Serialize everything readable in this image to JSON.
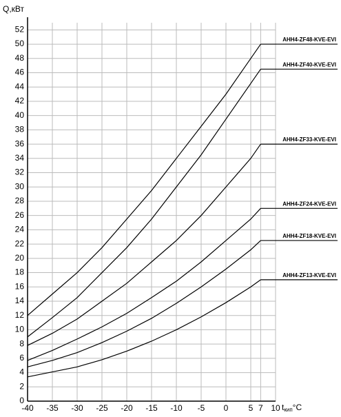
{
  "chart_data": {
    "type": "line",
    "y_label": "Q,кВт",
    "x_label": {
      "main": "t",
      "sub": "кип",
      "unit": "°C"
    },
    "x": [
      -40,
      -35,
      -30,
      -25,
      -20,
      -15,
      -10,
      -5,
      0,
      5,
      7
    ],
    "series": [
      {
        "name": "AHH4-ZF48-KVE-EVI",
        "color": "#000000",
        "values": [
          12,
          15,
          18,
          21.5,
          25.5,
          29.5,
          34,
          38.5,
          43,
          48,
          50
        ]
      },
      {
        "name": "AHH4-ZF40-KVE-EVI",
        "color": "#000000",
        "values": [
          9,
          11.7,
          14.5,
          18,
          21.5,
          25.5,
          30,
          34.5,
          39.5,
          44.5,
          46.5
        ]
      },
      {
        "name": "AHH4-ZF33-KVE-EVI",
        "color": "#000000",
        "values": [
          7.8,
          9.5,
          11.5,
          14,
          16.5,
          19.5,
          22.5,
          26,
          30,
          34,
          36
        ]
      },
      {
        "name": "AHH4-ZF24-KVE-EVI",
        "color": "#000000",
        "values": [
          5.7,
          7.1,
          8.7,
          10.4,
          12.3,
          14.5,
          16.8,
          19.5,
          22.5,
          25.5,
          27
        ]
      },
      {
        "name": "AHH4-ZF18-KVE-EVI",
        "color": "#000000",
        "values": [
          4.8,
          5.7,
          6.8,
          8.2,
          9.8,
          11.6,
          13.7,
          16,
          18.5,
          21.2,
          22.5
        ]
      },
      {
        "name": "AHH4-ZF13-KVE-EVI",
        "color": "#000000",
        "values": [
          3.4,
          4.1,
          4.8,
          5.8,
          7,
          8.4,
          10,
          11.8,
          13.8,
          16,
          17
        ]
      }
    ],
    "xlim": [
      -40,
      10
    ],
    "ylim": [
      0,
      53
    ],
    "xticks": [
      -40,
      -35,
      -30,
      -25,
      -20,
      -15,
      -10,
      -5,
      0,
      5,
      7,
      10
    ],
    "yticks": [
      0,
      2,
      4,
      6,
      8,
      10,
      12,
      14,
      16,
      18,
      20,
      22,
      24,
      26,
      28,
      30,
      32,
      34,
      36,
      38,
      40,
      42,
      44,
      46,
      48,
      50,
      52
    ],
    "grid": true
  }
}
